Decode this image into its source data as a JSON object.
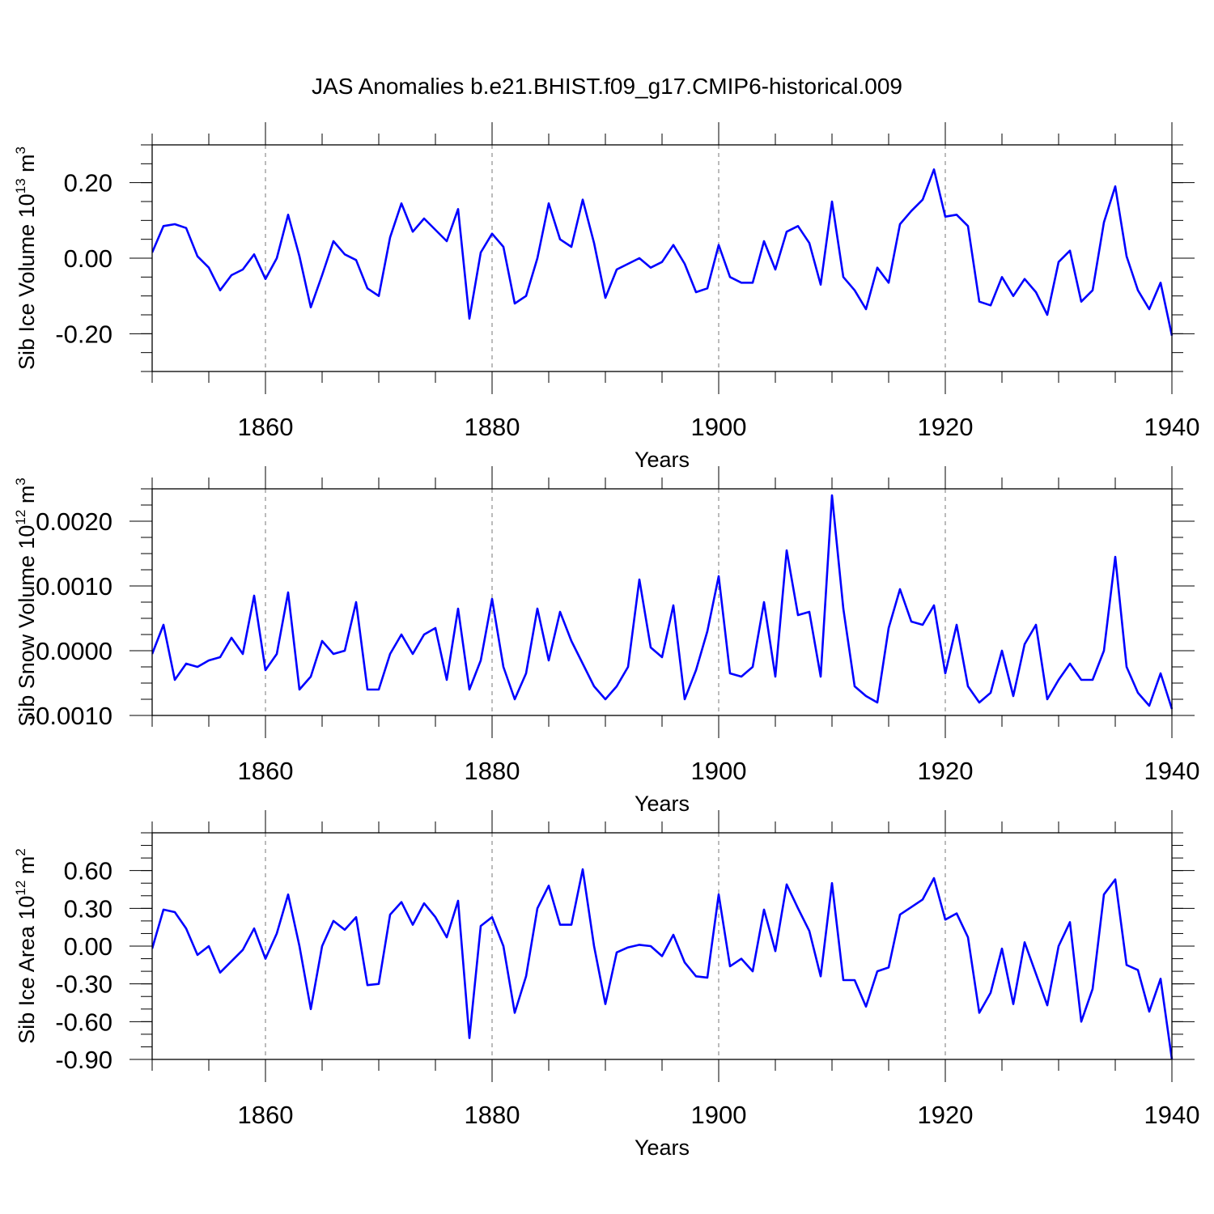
{
  "figure": {
    "title": "JAS Anomalies b.e21.BHIST.f09_g17.CMIP6-historical.009"
  },
  "chart_data": [
    {
      "type": "line",
      "title": "",
      "xlabel": "Years",
      "ylabel": "Sib Ice Volume 10",
      "ylabel_exp": "13",
      "ylabel_unit": " m",
      "ylabel_unit_exp": "3",
      "xlim": [
        1850,
        1940
      ],
      "ylim": [
        -0.3,
        0.3
      ],
      "xticks": [
        1860,
        1880,
        1900,
        1920,
        1940
      ],
      "yticks": [
        -0.2,
        0.0,
        0.2
      ],
      "ytick_labels": [
        "-0.20",
        "0.00",
        "0.20"
      ],
      "grid": "vertical dashed at major x ticks",
      "series": [
        {
          "name": "Sib Ice Volume",
          "color": "#0000ff",
          "x_start": 1850,
          "values": [
            0.015,
            0.085,
            0.09,
            0.08,
            0.005,
            -0.025,
            -0.085,
            -0.045,
            -0.03,
            0.01,
            -0.055,
            0.0,
            0.115,
            0.005,
            -0.13,
            -0.045,
            0.045,
            0.01,
            -0.005,
            -0.08,
            -0.1,
            0.055,
            0.145,
            0.07,
            0.105,
            0.075,
            0.045,
            0.13,
            -0.16,
            0.015,
            0.065,
            0.03,
            -0.12,
            -0.1,
            0.0,
            0.145,
            0.05,
            0.03,
            0.155,
            0.04,
            -0.105,
            -0.03,
            -0.015,
            0.0,
            -0.025,
            -0.01,
            0.035,
            -0.015,
            -0.09,
            -0.08,
            0.035,
            -0.05,
            -0.065,
            -0.065,
            0.045,
            -0.03,
            0.07,
            0.085,
            0.04,
            -0.07,
            0.15,
            -0.05,
            -0.085,
            -0.135,
            -0.025,
            -0.065,
            0.09,
            0.125,
            0.155,
            0.235,
            0.11,
            0.115,
            0.085,
            -0.115,
            -0.125,
            -0.05,
            -0.1,
            -0.055,
            -0.09,
            -0.15,
            -0.01,
            0.02,
            -0.115,
            -0.085,
            0.095,
            0.19,
            0.005,
            -0.085,
            -0.135,
            -0.065,
            -0.205
          ]
        }
      ]
    },
    {
      "type": "line",
      "title": "",
      "xlabel": "Years",
      "ylabel": "Sib Snow Volume 10",
      "ylabel_exp": "12",
      "ylabel_unit": " m",
      "ylabel_unit_exp": "3",
      "xlim": [
        1850,
        1940
      ],
      "ylim": [
        -0.001,
        0.0025
      ],
      "xticks": [
        1860,
        1880,
        1900,
        1920,
        1940
      ],
      "yticks": [
        -0.001,
        0.0,
        0.001,
        0.002
      ],
      "ytick_labels": [
        "-0.0010",
        "0.0000",
        "0.0010",
        "0.0020"
      ],
      "grid": "vertical dashed at major x ticks",
      "series": [
        {
          "name": "Sib Snow Volume",
          "color": "#0000ff",
          "x_start": 1850,
          "values": [
            -5e-05,
            0.0004,
            -0.00045,
            -0.0002,
            -0.00025,
            -0.00015,
            -0.0001,
            0.0002,
            -5e-05,
            0.00085,
            -0.0003,
            -5e-05,
            0.0009,
            -0.0006,
            -0.0004,
            0.00015,
            -5e-05,
            0.0,
            0.00075,
            -0.0006,
            -0.0006,
            -5e-05,
            0.00025,
            -5e-05,
            0.00025,
            0.00035,
            -0.00045,
            0.00065,
            -0.0006,
            -0.00015,
            0.0008,
            -0.00025,
            -0.00075,
            -0.00035,
            0.00065,
            -0.00015,
            0.0006,
            0.00015,
            -0.0002,
            -0.00055,
            -0.00075,
            -0.00055,
            -0.00025,
            0.0011,
            5e-05,
            -0.0001,
            0.0007,
            -0.00075,
            -0.0003,
            0.0003,
            0.00115,
            -0.00035,
            -0.0004,
            -0.00025,
            0.00075,
            -0.0004,
            0.00155,
            0.00055,
            0.0006,
            -0.0004,
            0.0024,
            0.00065,
            -0.00055,
            -0.0007,
            -0.0008,
            0.00035,
            0.00095,
            0.00045,
            0.0004,
            0.0007,
            -0.00035,
            0.0004,
            -0.00055,
            -0.0008,
            -0.00065,
            0.0,
            -0.0007,
            0.0001,
            0.0004,
            -0.00075,
            -0.00045,
            -0.0002,
            -0.00045,
            -0.00045,
            0.0,
            0.00145,
            -0.00025,
            -0.00065,
            -0.00085,
            -0.00035,
            -0.0009
          ]
        }
      ]
    },
    {
      "type": "line",
      "title": "",
      "xlabel": "Years",
      "ylabel": "Sib Ice Area 10",
      "ylabel_exp": "12",
      "ylabel_unit": " m",
      "ylabel_unit_exp": "2",
      "xlim": [
        1850,
        1940
      ],
      "ylim": [
        -0.9,
        0.9
      ],
      "xticks": [
        1860,
        1880,
        1900,
        1920,
        1940
      ],
      "yticks": [
        -0.9,
        -0.6,
        -0.3,
        0.0,
        0.3,
        0.6
      ],
      "ytick_labels": [
        "-0.90",
        "-0.60",
        "-0.30",
        "0.00",
        "0.30",
        "0.60"
      ],
      "grid": "vertical dashed at major x ticks",
      "series": [
        {
          "name": "Sib Ice Area",
          "color": "#0000ff",
          "x_start": 1850,
          "values": [
            -0.02,
            0.29,
            0.27,
            0.14,
            -0.07,
            0.0,
            -0.21,
            -0.12,
            -0.03,
            0.14,
            -0.1,
            0.1,
            0.41,
            0.0,
            -0.5,
            0.0,
            0.2,
            0.13,
            0.23,
            -0.31,
            -0.3,
            0.25,
            0.35,
            0.17,
            0.34,
            0.23,
            0.07,
            0.36,
            -0.73,
            0.16,
            0.23,
            0.0,
            -0.53,
            -0.24,
            0.3,
            0.48,
            0.17,
            0.17,
            0.61,
            0.0,
            -0.46,
            -0.05,
            -0.01,
            0.01,
            0.0,
            -0.08,
            0.09,
            -0.13,
            -0.24,
            -0.25,
            0.41,
            -0.16,
            -0.1,
            -0.2,
            0.29,
            -0.04,
            0.49,
            0.3,
            0.12,
            -0.24,
            0.5,
            -0.27,
            -0.27,
            -0.48,
            -0.2,
            -0.17,
            0.25,
            0.31,
            0.37,
            0.54,
            0.21,
            0.26,
            0.07,
            -0.53,
            -0.37,
            -0.02,
            -0.46,
            0.03,
            -0.22,
            -0.47,
            0.0,
            0.19,
            -0.6,
            -0.34,
            0.41,
            0.53,
            -0.15,
            -0.19,
            -0.52,
            -0.26,
            -0.9
          ]
        }
      ]
    }
  ]
}
